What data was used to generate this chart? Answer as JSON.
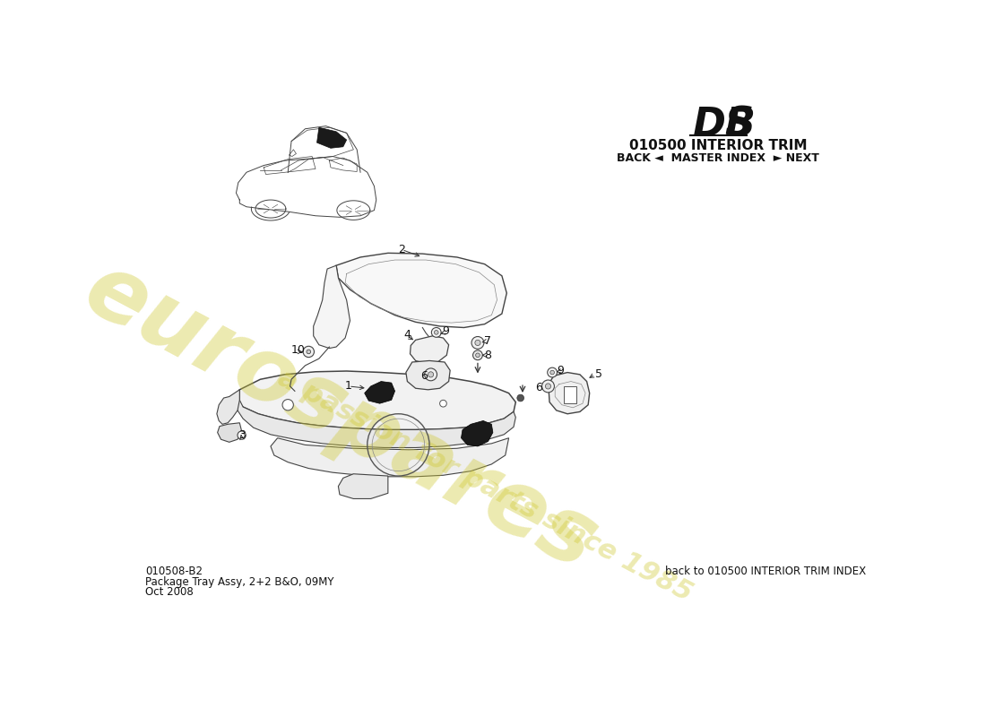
{
  "bg_color": "#ffffff",
  "title_section": "010500 INTERIOR TRIM",
  "nav_text": "BACK ◄  MASTER INDEX  ► NEXT",
  "part_number": "010508-B2",
  "part_name": "Package Tray Assy, 2+2 B&O, 09MY",
  "date": "Oct 2008",
  "bottom_right_text": "back to 010500 INTERIOR TRIM INDEX",
  "watermark_color": "#cfc832",
  "watermark_alpha": 0.38
}
